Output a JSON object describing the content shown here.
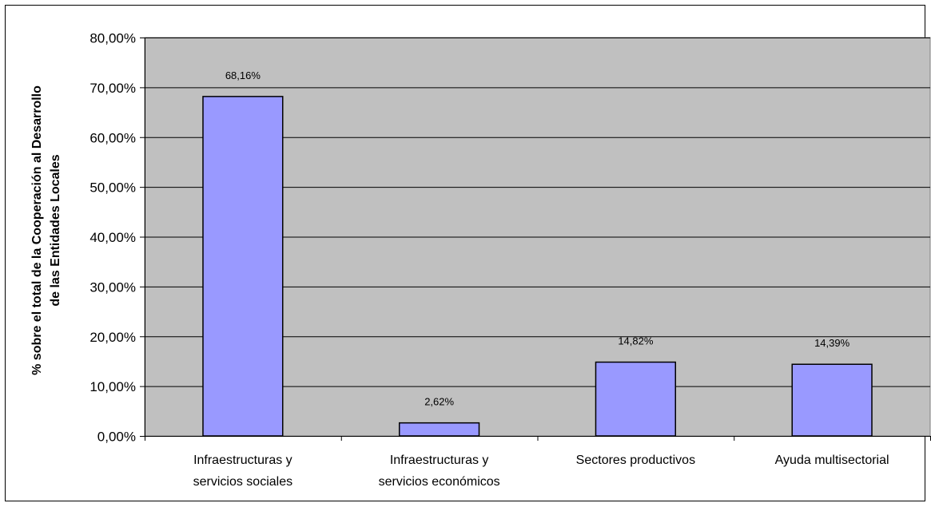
{
  "chart_data": {
    "type": "bar",
    "categories": [
      [
        "Infraestructuras y",
        "servicios sociales"
      ],
      [
        "Infraestructuras y",
        "servicios económicos"
      ],
      [
        "Sectores productivos"
      ],
      [
        "Ayuda multisectorial"
      ]
    ],
    "values": [
      68.16,
      2.62,
      14.82,
      14.39
    ],
    "data_labels": [
      "68,16%",
      "2,62%",
      "14,82%",
      "14,39%"
    ],
    "ylabel_lines": [
      "% sobre el total de la Cooperación al Desarrollo",
      "de las Entidades Locales"
    ],
    "ylim": [
      0,
      80
    ],
    "yticks": [
      0,
      10,
      20,
      30,
      40,
      50,
      60,
      70,
      80
    ],
    "ytick_labels": [
      "0,00%",
      "10,00%",
      "20,00%",
      "30,00%",
      "40,00%",
      "50,00%",
      "60,00%",
      "70,00%",
      "80,00%"
    ],
    "grid": true,
    "colors": {
      "plot_background": "#c0c0c0",
      "bar_fill": "#9999ff",
      "bar_stroke": "#000000",
      "gridline": "#000000"
    }
  }
}
